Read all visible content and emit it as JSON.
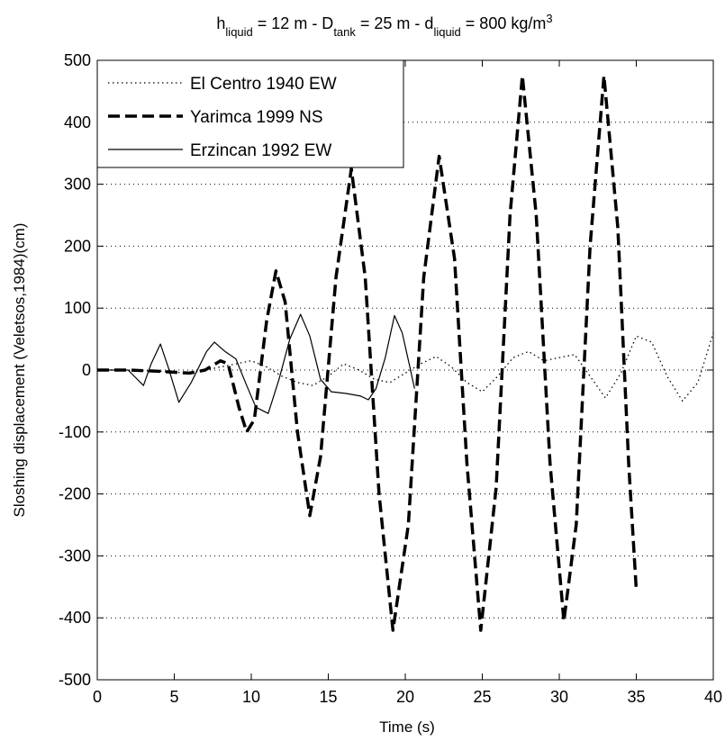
{
  "chart_data": {
    "type": "line",
    "title": {
      "base": "h",
      "parts": [
        {
          "text": "h",
          "sub": false
        },
        {
          "text": "liquid",
          "sub": true
        },
        {
          "text": " = 12 m - D",
          "sub": false
        },
        {
          "text": "tank",
          "sub": true
        },
        {
          "text": " = 25 m - d",
          "sub": false
        },
        {
          "text": "liquid",
          "sub": true
        },
        {
          "text": " = 800 kg/m",
          "sub": false
        },
        {
          "text": "3",
          "sup": true
        }
      ]
    },
    "xlabel": "Time (s)",
    "ylabel": "Sloshing displacement (Veletsos,1984)(cm)",
    "xlim": [
      0,
      40
    ],
    "ylim": [
      -500,
      500
    ],
    "xticks": [
      0,
      5,
      10,
      15,
      20,
      25,
      30,
      35,
      40
    ],
    "yticks": [
      -500,
      -400,
      -300,
      -200,
      -100,
      0,
      100,
      200,
      300,
      400,
      500
    ],
    "xtick_labels": [
      "0",
      "5",
      "10",
      "15",
      "20",
      "25",
      "30",
      "35",
      "40"
    ],
    "ytick_labels": [
      "-500",
      "-400",
      "-300",
      "-200",
      "-100",
      "0",
      "100",
      "200",
      "300",
      "400",
      "500"
    ],
    "grid": "horizontal dotted",
    "legend_position": "top-left",
    "series": [
      {
        "name": "El Centro 1940 EW",
        "style": "dotted",
        "color": "#000000",
        "points": [
          [
            0,
            0
          ],
          [
            2,
            0
          ],
          [
            4,
            -2
          ],
          [
            6,
            -5
          ],
          [
            8,
            5
          ],
          [
            10,
            15
          ],
          [
            11,
            5
          ],
          [
            12,
            -10
          ],
          [
            13,
            -20
          ],
          [
            14,
            -25
          ],
          [
            15,
            -10
          ],
          [
            16,
            10
          ],
          [
            17,
            0
          ],
          [
            18,
            -15
          ],
          [
            19,
            -20
          ],
          [
            20,
            -5
          ],
          [
            21,
            10
          ],
          [
            22,
            22
          ],
          [
            23,
            5
          ],
          [
            24,
            -20
          ],
          [
            25,
            -35
          ],
          [
            26,
            -10
          ],
          [
            27,
            20
          ],
          [
            28,
            30
          ],
          [
            29,
            15
          ],
          [
            30,
            20
          ],
          [
            31,
            25
          ],
          [
            32,
            -10
          ],
          [
            33,
            -45
          ],
          [
            34,
            -5
          ],
          [
            35,
            55
          ],
          [
            36,
            45
          ],
          [
            37,
            -10
          ],
          [
            38,
            -50
          ],
          [
            39,
            -20
          ],
          [
            40,
            60
          ]
        ]
      },
      {
        "name": "Yarimca 1999 NS",
        "style": "dashed",
        "color": "#000000",
        "points": [
          [
            0,
            0
          ],
          [
            2,
            0
          ],
          [
            4,
            -2
          ],
          [
            6,
            -5
          ],
          [
            7,
            0
          ],
          [
            8,
            15
          ],
          [
            8.5,
            10
          ],
          [
            9.2,
            -60
          ],
          [
            9.7,
            -100
          ],
          [
            10.2,
            -80
          ],
          [
            11.0,
            80
          ],
          [
            11.6,
            160
          ],
          [
            12.2,
            110
          ],
          [
            13.0,
            -100
          ],
          [
            13.8,
            -235
          ],
          [
            14.5,
            -140
          ],
          [
            15.5,
            150
          ],
          [
            16.5,
            325
          ],
          [
            17.4,
            150
          ],
          [
            18.3,
            -200
          ],
          [
            19.2,
            -420
          ],
          [
            20.2,
            -250
          ],
          [
            21.2,
            150
          ],
          [
            22.2,
            345
          ],
          [
            23.2,
            180
          ],
          [
            24.0,
            -150
          ],
          [
            24.9,
            -420
          ],
          [
            25.9,
            -190
          ],
          [
            26.8,
            250
          ],
          [
            27.6,
            475
          ],
          [
            28.5,
            250
          ],
          [
            29.4,
            -150
          ],
          [
            30.3,
            -405
          ],
          [
            31.1,
            -250
          ],
          [
            32.0,
            200
          ],
          [
            32.9,
            475
          ],
          [
            33.8,
            230
          ],
          [
            34.5,
            -150
          ],
          [
            35,
            -355
          ]
        ]
      },
      {
        "name": "Erzincan 1992 EW",
        "style": "solid",
        "color": "#000000",
        "points": [
          [
            0,
            0
          ],
          [
            2,
            0
          ],
          [
            3,
            -25
          ],
          [
            3.5,
            10
          ],
          [
            4.1,
            42
          ],
          [
            4.6,
            5
          ],
          [
            5.3,
            -52
          ],
          [
            6.1,
            -20
          ],
          [
            7.1,
            30
          ],
          [
            7.6,
            45
          ],
          [
            8.3,
            30
          ],
          [
            9,
            18
          ],
          [
            9.7,
            -25
          ],
          [
            10.3,
            -60
          ],
          [
            11.1,
            -70
          ],
          [
            11.8,
            -15
          ],
          [
            12.5,
            50
          ],
          [
            13.2,
            90
          ],
          [
            13.8,
            55
          ],
          [
            14.5,
            -15
          ],
          [
            15.2,
            -35
          ],
          [
            16.2,
            -38
          ],
          [
            17.1,
            -42
          ],
          [
            17.6,
            -48
          ],
          [
            18.1,
            -30
          ],
          [
            18.7,
            20
          ],
          [
            19.3,
            88
          ],
          [
            19.8,
            60
          ],
          [
            20.3,
            5
          ],
          [
            20.6,
            -30
          ]
        ]
      }
    ]
  }
}
